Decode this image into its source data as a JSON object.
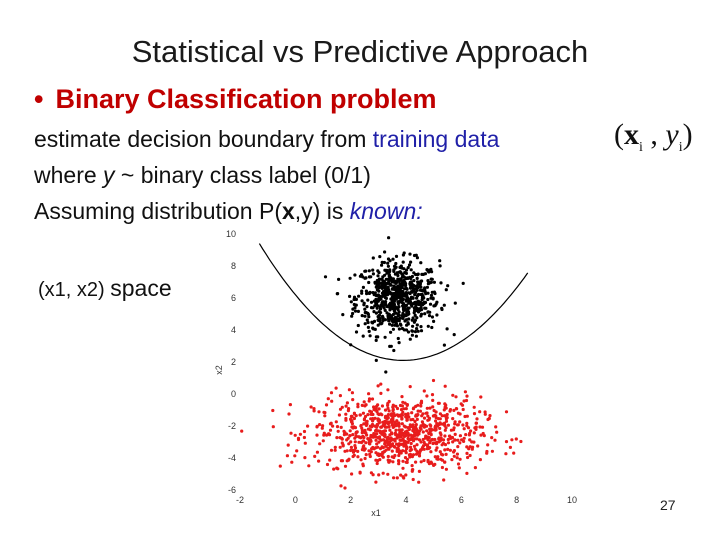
{
  "slide": {
    "title": "Statistical vs Predictive Approach",
    "bullet_symbol": "•",
    "bullet": "Binary Classification problem",
    "line1_text": "estimate decision boundary from ",
    "line1_highlight": "training data",
    "line2_a": "where ",
    "line2_var": "y",
    "line2_b": " ~ binary class label (0/1)",
    "line3_a": "Assuming distribution P(",
    "line3_bold": "x",
    "line3_b": ",y) is ",
    "line3_italic": "known:",
    "formula": {
      "open": "(",
      "x": "x",
      "x_sub": "i",
      "comma": " , ",
      "y": "y",
      "y_sub": "i",
      "close": ")"
    },
    "space_label_small": "(x1, x2) ",
    "space_label_big": "space",
    "page_number": "27"
  },
  "chart_data": {
    "type": "scatter",
    "xlabel": "x1",
    "ylabel": "x2",
    "xlim": [
      -2,
      10
    ],
    "ylim": [
      -6,
      10
    ],
    "xticks": [
      "-2",
      "0",
      "2",
      "4",
      "6",
      "8",
      "10"
    ],
    "yticks": [
      "10",
      "8",
      "6",
      "4",
      "2",
      "0",
      "-2",
      "-4",
      "-6"
    ],
    "series": [
      {
        "color": "#000000",
        "center": [
          3.7,
          6.0
        ],
        "spread": [
          0.75,
          1.15
        ],
        "count": 700
      },
      {
        "color": "#e81c1c",
        "center": [
          3.7,
          -2.5
        ],
        "spread": [
          1.5,
          1.15
        ],
        "count": 900
      }
    ],
    "boundary": {
      "type": "parabola",
      "vertex": [
        3.9,
        2.1
      ],
      "curvature": 0.27,
      "x_range": [
        -1.3,
        8.4
      ],
      "color": "#000000"
    }
  }
}
